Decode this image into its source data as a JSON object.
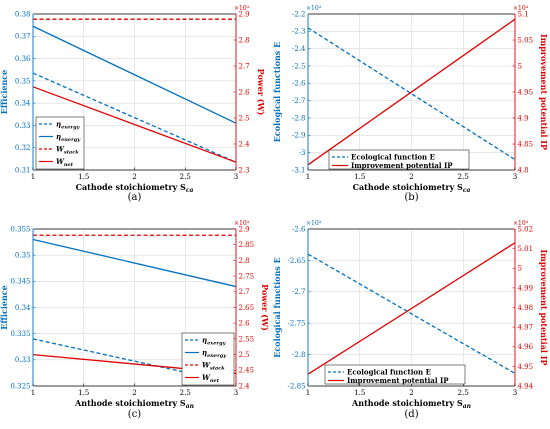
{
  "colors": {
    "blue": "#0070c0",
    "red": "#e00000",
    "grid": "#d0d0d0"
  },
  "chart_data": [
    {
      "id": "a",
      "type": "line",
      "panel_label": "(a)",
      "xlabel": "Cathode stoichiometry S",
      "xlabel_sub": "ca",
      "ylabel": "Efficience",
      "ylabel_right": "Power (W)",
      "right_multiplier": "×10⁴",
      "xlim": [
        1,
        3
      ],
      "ylim": [
        0.31,
        0.38
      ],
      "ylim_right": [
        2.3,
        2.9
      ],
      "xticks": [
        1,
        1.5,
        2,
        2.5,
        3
      ],
      "xtick_labels": [
        "1",
        "1.5",
        "2",
        "2.5",
        "3"
      ],
      "yticks": [
        0.31,
        0.32,
        0.33,
        0.34,
        0.35,
        0.36,
        0.37,
        0.38
      ],
      "ytick_labels": [
        "0.31",
        "0.32",
        "0.33",
        "0.34",
        "0.35",
        "0.36",
        "0.37",
        "0.38"
      ],
      "yticks_right": [
        2.3,
        2.4,
        2.5,
        2.6,
        2.7,
        2.8,
        2.9
      ],
      "ytick_labels_right": [
        "2.3",
        "2.4",
        "2.5",
        "2.6",
        "2.7",
        "2.8",
        "2.9"
      ],
      "grid": true,
      "legend_position": "bottom-left",
      "series": [
        {
          "name": "η",
          "sub": "exergy",
          "axis": "left",
          "color": "#0070c0",
          "dash": true,
          "x": [
            1,
            3
          ],
          "y": [
            0.3535,
            0.3135
          ]
        },
        {
          "name": "η",
          "sub": "energy",
          "axis": "left",
          "color": "#0070c0",
          "dash": false,
          "x": [
            1,
            3
          ],
          "y": [
            0.3745,
            0.331
          ]
        },
        {
          "name": "W",
          "sub": "stack",
          "axis": "right",
          "color": "#e00000",
          "dash": true,
          "x": [
            1,
            3
          ],
          "y": [
            2.88,
            2.88
          ]
        },
        {
          "name": "W",
          "sub": "net",
          "axis": "right",
          "color": "#e00000",
          "dash": false,
          "x": [
            1,
            3
          ],
          "y": [
            2.62,
            2.33
          ]
        }
      ]
    },
    {
      "id": "b",
      "type": "line",
      "panel_label": "(b)",
      "xlabel": "Cathode stoichiometry S",
      "xlabel_sub": "ca",
      "ylabel": "Ecological functions E",
      "ylabel_right": "Improvement potential IP",
      "left_multiplier": "×10⁴",
      "right_multiplier": "×10⁴",
      "xlim": [
        1,
        3
      ],
      "ylim": [
        -3.1,
        -2.2
      ],
      "ylim_right": [
        4.8,
        5.1
      ],
      "xticks": [
        1,
        1.5,
        2,
        2.5,
        3
      ],
      "xtick_labels": [
        "1",
        "1.5",
        "2",
        "2.5",
        "3"
      ],
      "yticks": [
        -3.1,
        -3,
        -2.9,
        -2.8,
        -2.7,
        -2.6,
        -2.5,
        -2.4,
        -2.3,
        -2.2
      ],
      "ytick_labels": [
        "-3.1",
        "-3",
        "-2.9",
        "-2.8",
        "-2.7",
        "-2.6",
        "-2.5",
        "-2.4",
        "-2.3",
        "-2.2"
      ],
      "yticks_right": [
        4.8,
        4.85,
        4.9,
        4.95,
        5,
        5.05,
        5.1
      ],
      "ytick_labels_right": [
        "4.8",
        "4.85",
        "4.9",
        "4.95",
        "5",
        "5.05",
        "5.1"
      ],
      "grid": true,
      "legend_position": "bottom-center",
      "series": [
        {
          "name": "Ecological function E",
          "axis": "left",
          "color": "#0070c0",
          "dash": true,
          "x": [
            1,
            3
          ],
          "y": [
            -2.28,
            -3.04
          ]
        },
        {
          "name": "Improvement potential IP",
          "axis": "right",
          "color": "#e00000",
          "dash": false,
          "x": [
            1,
            3
          ],
          "y": [
            4.81,
            5.09
          ]
        }
      ]
    },
    {
      "id": "c",
      "type": "line",
      "panel_label": "(c)",
      "xlabel": "Anthode stoichiometry S",
      "xlabel_sub": "an",
      "ylabel": "Efficience",
      "ylabel_right": "Power (W)",
      "right_multiplier": "×10⁴",
      "xlim": [
        1,
        3
      ],
      "ylim": [
        0.325,
        0.355
      ],
      "ylim_right": [
        2.4,
        2.9
      ],
      "xticks": [
        1,
        1.5,
        2,
        2.5,
        3
      ],
      "xtick_labels": [
        "1",
        "1.5",
        "2",
        "2.5",
        "3"
      ],
      "yticks": [
        0.325,
        0.33,
        0.335,
        0.34,
        0.345,
        0.35,
        0.355
      ],
      "ytick_labels": [
        "0.325",
        "0.33",
        "0.335",
        "0.34",
        "0.345",
        "0.35",
        "0.355"
      ],
      "yticks_right": [
        2.4,
        2.45,
        2.5,
        2.55,
        2.6,
        2.65,
        2.7,
        2.75,
        2.8,
        2.85,
        2.9
      ],
      "ytick_labels_right": [
        "2.4",
        "2.45",
        "2.5",
        "2.55",
        "2.6",
        "2.65",
        "2.7",
        "2.75",
        "2.8",
        "2.85",
        "2.9"
      ],
      "grid": true,
      "legend_position": "bottom-right",
      "series": [
        {
          "name": "η",
          "sub": "exergy",
          "axis": "left",
          "color": "#0070c0",
          "dash": true,
          "x": [
            1,
            3
          ],
          "y": [
            0.334,
            0.3255
          ]
        },
        {
          "name": "η",
          "sub": "energy",
          "axis": "left",
          "color": "#0070c0",
          "dash": false,
          "x": [
            1,
            3
          ],
          "y": [
            0.353,
            0.344
          ]
        },
        {
          "name": "W",
          "sub": "stack",
          "axis": "right",
          "color": "#e00000",
          "dash": true,
          "x": [
            1,
            3
          ],
          "y": [
            2.88,
            2.88
          ]
        },
        {
          "name": "W",
          "sub": "net",
          "axis": "right",
          "color": "#e00000",
          "dash": false,
          "x": [
            1,
            3
          ],
          "y": [
            2.5,
            2.44
          ]
        }
      ]
    },
    {
      "id": "d",
      "type": "line",
      "panel_label": "(d)",
      "xlabel": "Anthode stoichiometry S",
      "xlabel_sub": "an",
      "ylabel": "Ecological functions E",
      "ylabel_right": "Improvement potential IP",
      "left_multiplier": "×10⁴",
      "right_multiplier": "×10⁴",
      "xlim": [
        1,
        3
      ],
      "ylim": [
        -2.85,
        -2.6
      ],
      "ylim_right": [
        4.94,
        5.02
      ],
      "xticks": [
        1,
        1.5,
        2,
        2.5,
        3
      ],
      "xtick_labels": [
        "1",
        "1.5",
        "2",
        "2.5",
        "3"
      ],
      "yticks": [
        -2.85,
        -2.8,
        -2.75,
        -2.7,
        -2.65,
        -2.6
      ],
      "ytick_labels": [
        "-2.85",
        "-2.8",
        "-2.75",
        "-2.7",
        "-2.65",
        "-2.6"
      ],
      "yticks_right": [
        4.94,
        4.95,
        4.96,
        4.97,
        4.98,
        4.99,
        5,
        5.01,
        5.02
      ],
      "ytick_labels_right": [
        "4.94",
        "4.95",
        "4.96",
        "4.97",
        "4.98",
        "4.99",
        "5",
        "5.01",
        "5.02"
      ],
      "grid": true,
      "legend_position": "bottom-left",
      "series": [
        {
          "name": "Ecological function E",
          "axis": "left",
          "color": "#0070c0",
          "dash": true,
          "x": [
            1,
            3
          ],
          "y": [
            -2.64,
            -2.83
          ]
        },
        {
          "name": "Improvement potential IP",
          "axis": "right",
          "color": "#e00000",
          "dash": false,
          "x": [
            1,
            3
          ],
          "y": [
            4.946,
            5.013
          ]
        }
      ]
    }
  ]
}
